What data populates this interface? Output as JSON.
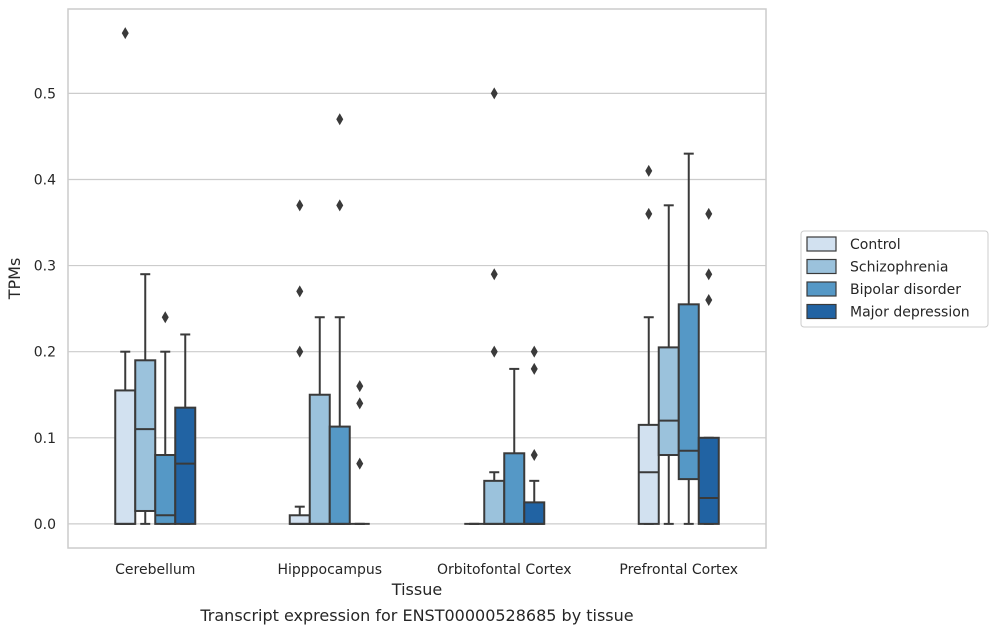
{
  "caption": "Transcript expression for ENST00000528685 by tissue",
  "chart_data": {
    "type": "box",
    "xlabel": "Tissue",
    "ylabel": "TPMs",
    "ylim": [
      -0.028,
      0.598
    ],
    "yticks": [
      0.0,
      0.1,
      0.2,
      0.3,
      0.4,
      0.5
    ],
    "ytick_labels": [
      "0.0",
      "0.1",
      "0.2",
      "0.3",
      "0.4",
      "0.5"
    ],
    "grid": "horizontal",
    "legend_position": "right",
    "categories": [
      "Cerebellum",
      "Hipppocampus",
      "Orbitofontal Cortex",
      "Prefrontal Cortex"
    ],
    "series": [
      {
        "name": "Control",
        "color": "#d2e1f0",
        "boxes": [
          {
            "q1": 0.0,
            "median": 0.0,
            "q3": 0.155,
            "whisker_low": 0.0,
            "whisker_high": 0.2,
            "outliers": [
              0.57
            ]
          },
          {
            "q1": 0.0,
            "median": 0.0,
            "q3": 0.01,
            "whisker_low": 0.0,
            "whisker_high": 0.02,
            "outliers": [
              0.2,
              0.27,
              0.37
            ]
          },
          {
            "q1": 0.0,
            "median": 0.0,
            "q3": 0.0,
            "whisker_low": 0.0,
            "whisker_high": 0.0,
            "outliers": []
          },
          {
            "q1": 0.0,
            "median": 0.06,
            "q3": 0.115,
            "whisker_low": 0.0,
            "whisker_high": 0.24,
            "outliers": [
              0.36,
              0.41
            ]
          }
        ]
      },
      {
        "name": "Schizophrenia",
        "color": "#9bc2dc",
        "boxes": [
          {
            "q1": 0.015,
            "median": 0.11,
            "q3": 0.19,
            "whisker_low": 0.0,
            "whisker_high": 0.29,
            "outliers": []
          },
          {
            "q1": 0.0,
            "median": 0.0,
            "q3": 0.15,
            "whisker_low": 0.0,
            "whisker_high": 0.24,
            "outliers": []
          },
          {
            "q1": 0.0,
            "median": 0.0,
            "q3": 0.05,
            "whisker_low": 0.0,
            "whisker_high": 0.06,
            "outliers": [
              0.2,
              0.29,
              0.5
            ]
          },
          {
            "q1": 0.08,
            "median": 0.12,
            "q3": 0.205,
            "whisker_low": 0.0,
            "whisker_high": 0.37,
            "outliers": []
          }
        ]
      },
      {
        "name": "Bipolar disorder",
        "color": "#5598c6",
        "boxes": [
          {
            "q1": 0.0,
            "median": 0.01,
            "q3": 0.08,
            "whisker_low": 0.0,
            "whisker_high": 0.2,
            "outliers": [
              0.24
            ]
          },
          {
            "q1": 0.0,
            "median": 0.0,
            "q3": 0.113,
            "whisker_low": 0.0,
            "whisker_high": 0.24,
            "outliers": [
              0.37,
              0.47
            ]
          },
          {
            "q1": 0.0,
            "median": 0.0,
            "q3": 0.082,
            "whisker_low": 0.0,
            "whisker_high": 0.18,
            "outliers": []
          },
          {
            "q1": 0.052,
            "median": 0.085,
            "q3": 0.255,
            "whisker_low": 0.0,
            "whisker_high": 0.43,
            "outliers": []
          }
        ]
      },
      {
        "name": "Major depression",
        "color": "#2163a3",
        "boxes": [
          {
            "q1": 0.0,
            "median": 0.07,
            "q3": 0.135,
            "whisker_low": 0.0,
            "whisker_high": 0.22,
            "outliers": []
          },
          {
            "q1": 0.0,
            "median": 0.0,
            "q3": 0.0,
            "whisker_low": 0.0,
            "whisker_high": 0.0,
            "outliers": [
              0.07,
              0.14,
              0.16
            ]
          },
          {
            "q1": 0.0,
            "median": 0.0,
            "q3": 0.025,
            "whisker_low": 0.0,
            "whisker_high": 0.05,
            "outliers": [
              0.08,
              0.18,
              0.2
            ]
          },
          {
            "q1": 0.0,
            "median": 0.03,
            "q3": 0.1,
            "whisker_low": 0.0,
            "whisker_high": 0.1,
            "outliers": [
              0.26,
              0.29,
              0.36
            ]
          }
        ]
      }
    ]
  }
}
